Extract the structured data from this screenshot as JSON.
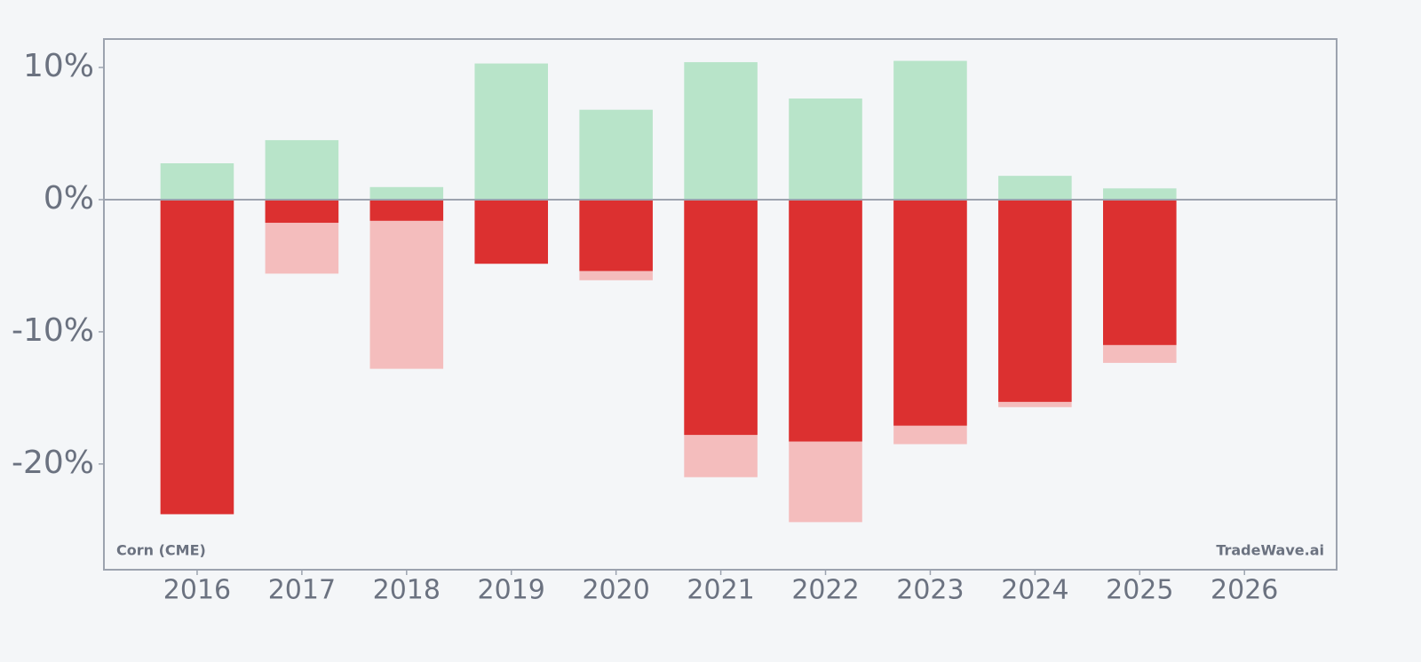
{
  "chart_data": {
    "type": "bar",
    "x": [
      2016,
      2017,
      2018,
      2019,
      2020,
      2021,
      2022,
      2023,
      2024,
      2025,
      2026
    ],
    "series": [
      {
        "color": "#b8e4c9",
        "values": [
          2.75,
          4.5,
          0.95,
          10.3,
          6.8,
          10.4,
          7.65,
          10.5,
          1.8,
          0.85,
          null
        ]
      },
      {
        "color": "#f4bdbd",
        "values": [
          -23.8,
          -5.6,
          -12.8,
          -4.85,
          -6.1,
          -21.0,
          -24.4,
          -18.5,
          -15.7,
          -12.35,
          null
        ]
      },
      {
        "color": "#dc3030",
        "values": [
          -23.8,
          -1.75,
          -1.6,
          -4.85,
          -5.4,
          -17.8,
          -18.3,
          -17.1,
          -15.3,
          -11.0,
          null
        ]
      }
    ],
    "xlim": [
      2015.11,
      2026.88
    ],
    "xticks": [
      2016,
      2017,
      2018,
      2019,
      2020,
      2021,
      2022,
      2023,
      2024,
      2025,
      2026
    ],
    "ylim": [
      -28.0,
      12.15
    ],
    "yticks": [
      {
        "value": -20,
        "label": "-20%"
      },
      {
        "value": -10,
        "label": "-10%"
      },
      {
        "value": 0,
        "label": "0%"
      },
      {
        "value": 10,
        "label": "10%"
      }
    ],
    "annotations": [
      "Corn (CME)",
      "TradeWave.ai"
    ]
  }
}
